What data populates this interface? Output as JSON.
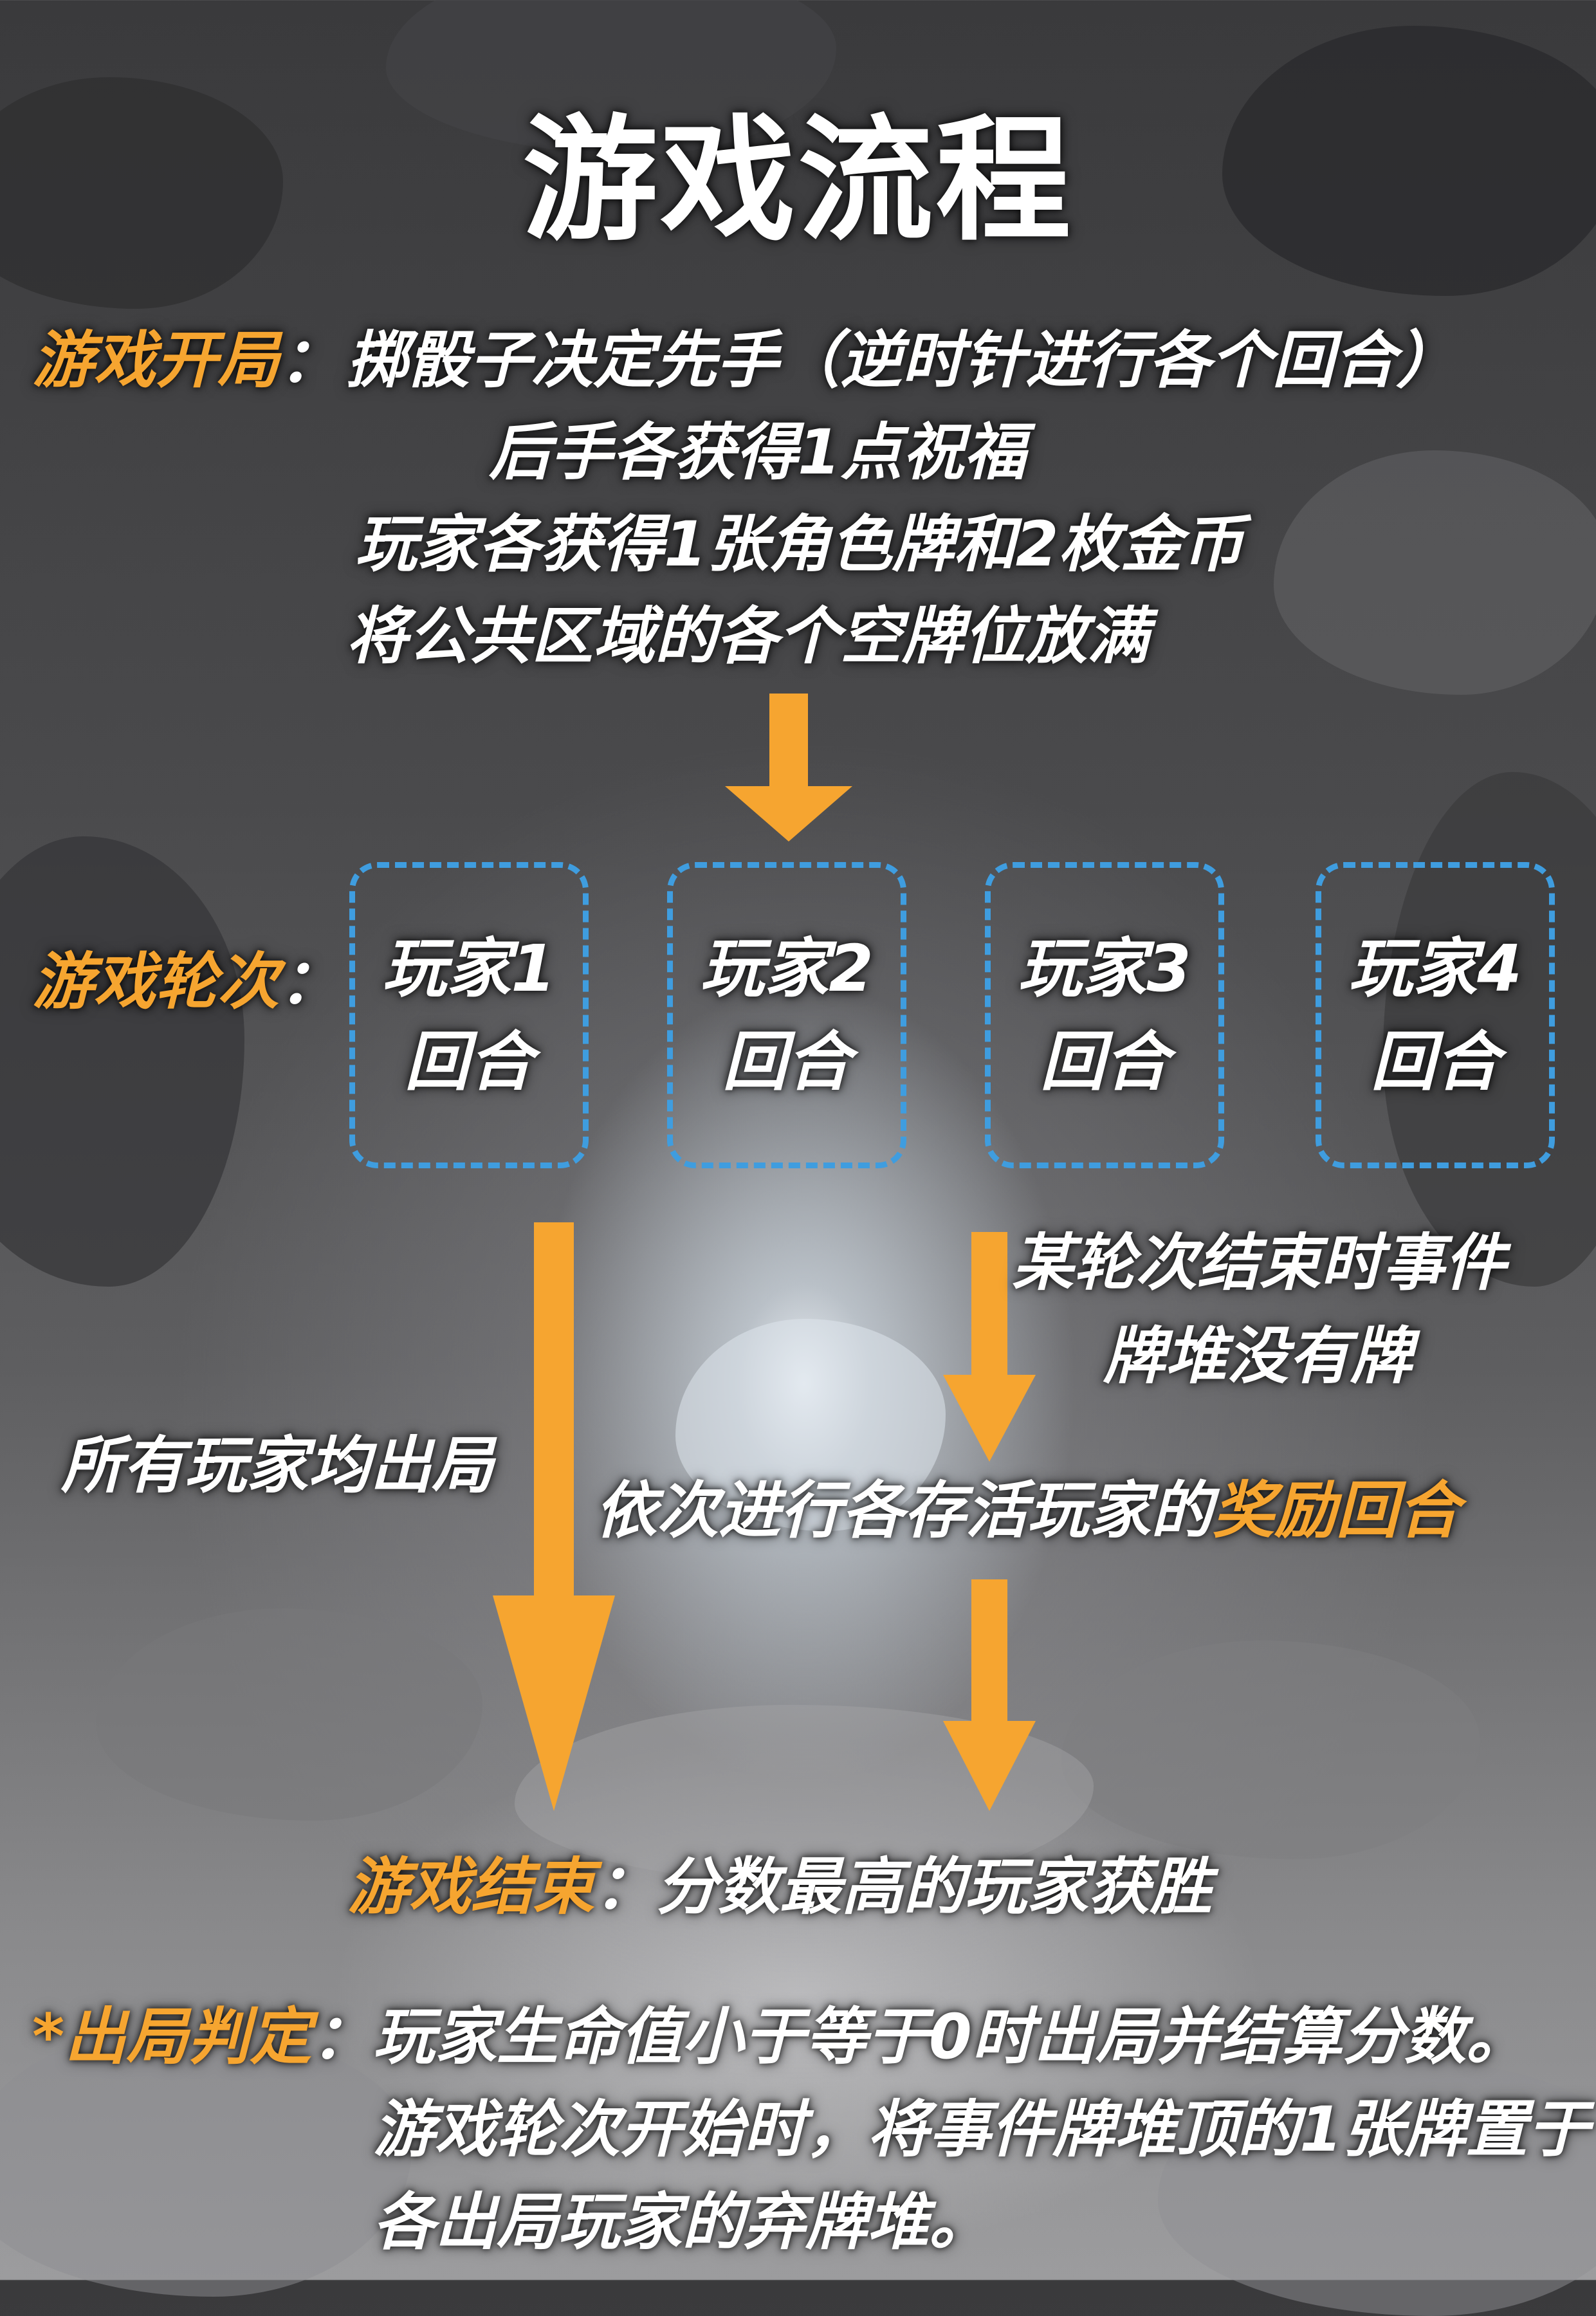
{
  "title": "游戏流程",
  "start": {
    "label": "游戏开局",
    "colon": "：",
    "lines": [
      "掷骰子决定先手（逆时针进行各个回合）",
      "后手各获得1点祝福",
      "玩家各获得1张角色牌和2枚金币",
      "将公共区域的各个空牌位放满"
    ]
  },
  "rounds": {
    "label": "游戏轮次",
    "colon": "：",
    "players": [
      {
        "name": "玩家1",
        "turn": "回合"
      },
      {
        "name": "玩家2",
        "turn": "回合"
      },
      {
        "name": "玩家3",
        "turn": "回合"
      },
      {
        "name": "玩家4",
        "turn": "回合"
      }
    ]
  },
  "branch_left": "所有玩家均出局",
  "branch_right": {
    "lines": [
      "某轮次结束时事件",
      "牌堆没有牌"
    ]
  },
  "bonus": {
    "text": "依次进行各存活玩家的",
    "highlight": "奖励回合"
  },
  "end": {
    "label": "游戏结束",
    "colon": "：",
    "text": "分数最高的玩家获胜"
  },
  "elimination": {
    "label": "*出局判定",
    "colon": "：",
    "lines": [
      "玩家生命值小于等于0时出局并结算分数。",
      "游戏轮次开始时，将事件牌堆顶的1张牌置于",
      "各出局玩家的弃牌堆。"
    ]
  },
  "colors": {
    "accent": "#f6a530",
    "box_border": "#3f9ddf",
    "text": "#ffffff"
  }
}
